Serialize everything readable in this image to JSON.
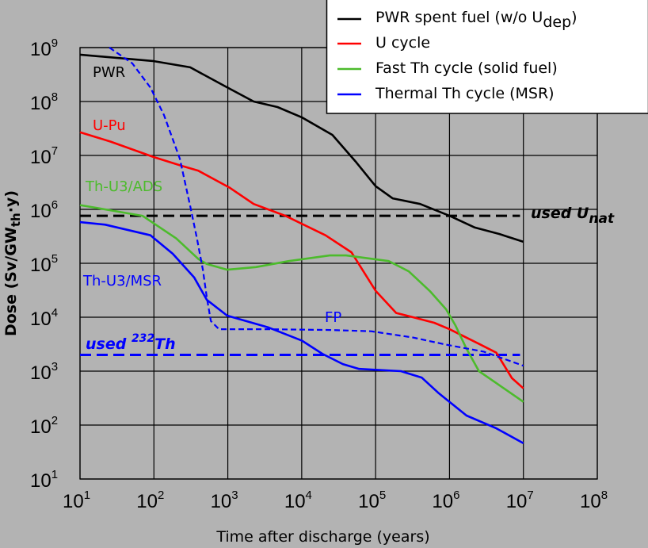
{
  "chart_data": {
    "type": "line",
    "title": "",
    "xlabel": "Time after discharge (years)",
    "ylabel_parts": {
      "main": "Dose (Sv/GW",
      "sub": "th",
      "tail": "·y)"
    },
    "xscale": "log",
    "yscale": "log",
    "xlim": [
      10,
      100000000
    ],
    "ylim": [
      10,
      1000000000
    ],
    "grid": true,
    "tick_base": "10",
    "x_tick_exponents": [
      "1",
      "2",
      "3",
      "4",
      "5",
      "6",
      "7",
      "8"
    ],
    "y_tick_exponents": [
      "1",
      "2",
      "3",
      "4",
      "5",
      "6",
      "7",
      "8",
      "9"
    ],
    "legend_placement": "top-right",
    "series": [
      {
        "name": "PWR spent fuel (w/o U_dep)",
        "legend_main": "PWR spent fuel (w/o U",
        "legend_sub": "dep",
        "legend_tail": ")",
        "color": "#000000",
        "dashed": false,
        "points": [
          [
            10,
            740000000.0
          ],
          [
            100,
            560000000.0
          ],
          [
            310,
            430000000.0
          ],
          [
            1000,
            180000000.0
          ],
          [
            2240,
            100000000.0
          ],
          [
            4700,
            79000000.0
          ],
          [
            10000,
            51000000.0
          ],
          [
            26000,
            24000000.0
          ],
          [
            55000,
            7400000.0
          ],
          [
            100000,
            2700000.0
          ],
          [
            170000,
            1600000.0
          ],
          [
            400000,
            1260000.0
          ],
          [
            1000000,
            760000.0
          ],
          [
            2200000,
            460000.0
          ],
          [
            4700000,
            350000.0
          ],
          [
            10000000,
            250000.0
          ]
        ]
      },
      {
        "name": "U cycle",
        "color": "#ff0000",
        "dashed": false,
        "points": [
          [
            10,
            27000000.0
          ],
          [
            26,
            18000000.0
          ],
          [
            100,
            9300000.0
          ],
          [
            240,
            6400000.0
          ],
          [
            400,
            5200000.0
          ],
          [
            1070,
            2500000.0
          ],
          [
            2240,
            1260000.0
          ],
          [
            6000,
            760000.0
          ],
          [
            21000,
            330000.0
          ],
          [
            47000,
            160000.0
          ],
          [
            100000,
            31000.0
          ],
          [
            190000,
            12000.0
          ],
          [
            320000,
            10000.0
          ],
          [
            620000,
            7900.0
          ],
          [
            1000000,
            6000.0
          ],
          [
            2500000,
            3200.0
          ],
          [
            4300000,
            2200.0
          ],
          [
            7000000,
            740
          ],
          [
            10000000,
            480
          ]
        ]
      },
      {
        "name": "Fast Th cycle (solid fuel)",
        "color": "#4cbb2c",
        "dashed": false,
        "points": [
          [
            10,
            1200000.0
          ],
          [
            70,
            760000.0
          ],
          [
            200,
            290000.0
          ],
          [
            400,
            120000.0
          ],
          [
            520,
            97000.0
          ],
          [
            980,
            76000.0
          ],
          [
            2400,
            85000.0
          ],
          [
            6700,
            110000.0
          ],
          [
            24000,
            140000.0
          ],
          [
            40000,
            140000.0
          ],
          [
            150000,
            110000.0
          ],
          [
            280000,
            71000.0
          ],
          [
            550000,
            30000.0
          ],
          [
            900000,
            14000.0
          ],
          [
            1200000,
            7100.0
          ],
          [
            1700000,
            2600.0
          ],
          [
            2500000,
            1000.0
          ],
          [
            4300000,
            600
          ],
          [
            10000000,
            270
          ]
        ]
      },
      {
        "name": "Thermal Th cycle (MSR)",
        "color": "#0000ff",
        "dashed": false,
        "points": [
          [
            10,
            580000.0
          ],
          [
            22,
            520000.0
          ],
          [
            90,
            330000.0
          ],
          [
            180,
            150000.0
          ],
          [
            350,
            55000.0
          ],
          [
            520,
            21000.0
          ],
          [
            980,
            10700.0
          ],
          [
            3500,
            6500.0
          ],
          [
            10000,
            3700.0
          ],
          [
            19000,
            2100.0
          ],
          [
            36000,
            1350.0
          ],
          [
            60000,
            1100.0
          ],
          [
            220000,
            1000.0
          ],
          [
            420000,
            760
          ],
          [
            700000,
            400
          ],
          [
            1000000,
            270
          ],
          [
            1700000,
            150
          ],
          [
            4300000,
            87
          ],
          [
            10000000,
            46
          ]
        ]
      },
      {
        "name": "FP",
        "color": "#0000ff",
        "dashed": true,
        "in_legend": false,
        "points": [
          [
            25,
            1000000000.0
          ],
          [
            51,
            510000000.0
          ],
          [
            90,
            180000000.0
          ],
          [
            137,
            56000000.0
          ],
          [
            224,
            8700000.0
          ],
          [
            310,
            1150000.0
          ],
          [
            380,
            300000.0
          ],
          [
            460,
            76000.0
          ],
          [
            520,
            23000.0
          ],
          [
            590,
            8500.0
          ],
          [
            760,
            6000.0
          ],
          [
            3500,
            6000.0
          ],
          [
            24000,
            5800.0
          ],
          [
            87000,
            5500.0
          ],
          [
            320000,
            4200.0
          ],
          [
            900000,
            3100.0
          ],
          [
            2900000,
            2300.0
          ],
          [
            10000000,
            1260.0
          ]
        ]
      }
    ],
    "reference_lines": [
      {
        "name": "used U_nat",
        "label_main": "used U",
        "label_sub": "nat",
        "value": 760000.0,
        "x_end": 9000000,
        "color": "#000000"
      },
      {
        "name": "used 232Th",
        "label_main": "used ",
        "label_sup": "232",
        "label_tail": "Th",
        "value": 2000.0,
        "x_end": 9000000,
        "color": "#0000ff"
      }
    ],
    "annotations": [
      {
        "text": "PWR",
        "color": "#000000"
      },
      {
        "text": "U-Pu",
        "color": "#ff0000"
      },
      {
        "text": "Th-U3/ADS",
        "color": "#4cbb2c"
      },
      {
        "text": "Th-U3/MSR",
        "color": "#0000ff"
      },
      {
        "text": "FP",
        "color": "#0000ff"
      }
    ]
  }
}
